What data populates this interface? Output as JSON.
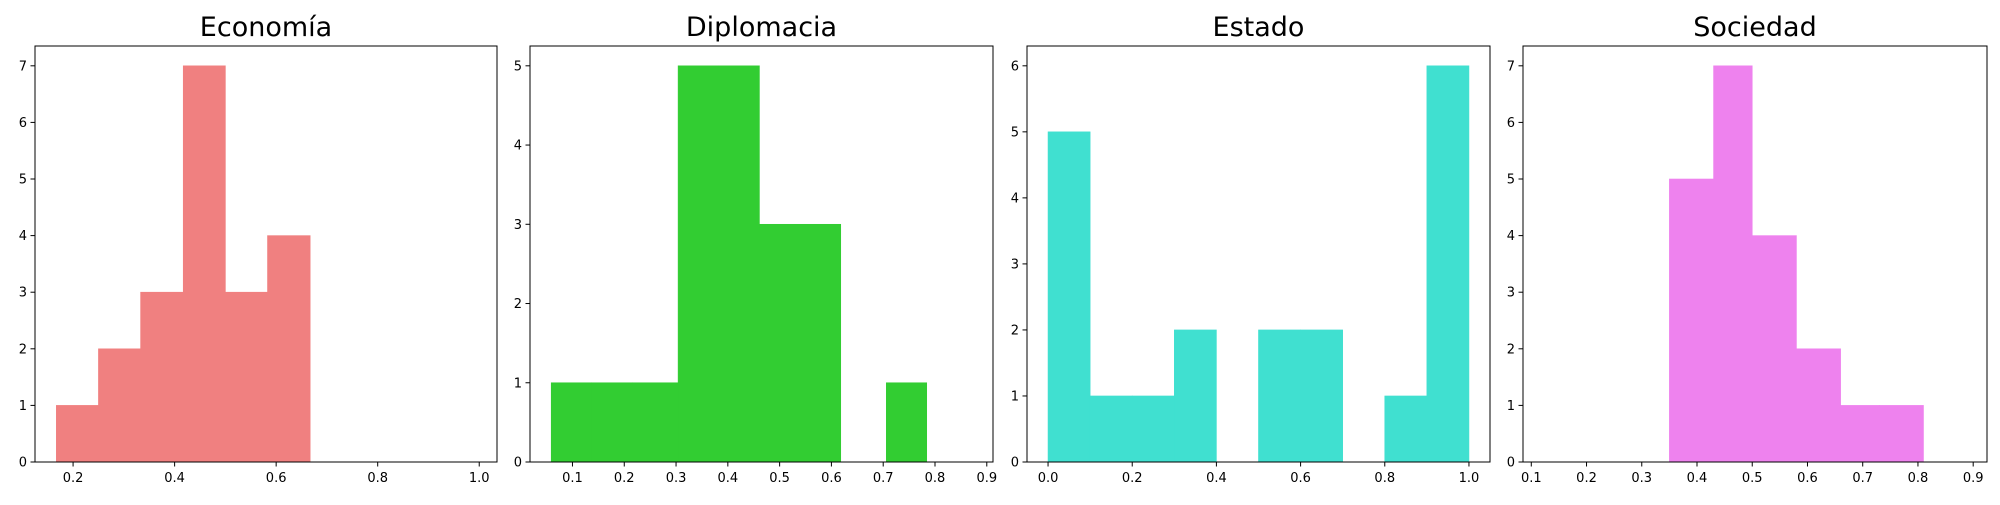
{
  "figure": {
    "background": "#ffffff"
  },
  "chart_data": [
    {
      "type": "bar",
      "title": "Economía",
      "xlabel": "",
      "ylabel": "",
      "color": "#f08080",
      "xlim": [
        0.125,
        1.035
      ],
      "ylim": [
        0,
        7.35
      ],
      "xticks": [
        0.2,
        0.4,
        0.6,
        0.8,
        1.0
      ],
      "xtick_labels": [
        "0.2",
        "0.4",
        "0.6",
        "0.8",
        "1.0"
      ],
      "yticks": [
        0,
        1,
        2,
        3,
        4,
        5,
        6,
        7
      ],
      "bins": [
        {
          "x0": 0.167,
          "x1": 0.25,
          "count": 1
        },
        {
          "x0": 0.25,
          "x1": 0.333,
          "count": 2
        },
        {
          "x0": 0.333,
          "x1": 0.417,
          "count": 3
        },
        {
          "x0": 0.417,
          "x1": 0.5,
          "count": 7
        },
        {
          "x0": 0.5,
          "x1": 0.583,
          "count": 3
        },
        {
          "x0": 0.583,
          "x1": 0.667,
          "count": 4
        }
      ]
    },
    {
      "type": "bar",
      "title": "Diplomacia",
      "xlabel": "",
      "ylabel": "",
      "color": "#32cd32",
      "xlim": [
        0.018,
        0.912
      ],
      "ylim": [
        0,
        5.25
      ],
      "xticks": [
        0.1,
        0.2,
        0.3,
        0.4,
        0.5,
        0.6,
        0.7,
        0.8,
        0.9
      ],
      "xtick_labels": [
        "0.1",
        "0.2",
        "0.3",
        "0.4",
        "0.5",
        "0.6",
        "0.7",
        "0.8",
        "0.9"
      ],
      "yticks": [
        0,
        1,
        2,
        3,
        4,
        5
      ],
      "bins": [
        {
          "x0": 0.059,
          "x1": 0.137,
          "count": 1
        },
        {
          "x0": 0.137,
          "x1": 0.216,
          "count": 1
        },
        {
          "x0": 0.216,
          "x1": 0.304,
          "count": 1
        },
        {
          "x0": 0.304,
          "x1": 0.382,
          "count": 5
        },
        {
          "x0": 0.382,
          "x1": 0.461,
          "count": 5
        },
        {
          "x0": 0.461,
          "x1": 0.539,
          "count": 3
        },
        {
          "x0": 0.539,
          "x1": 0.618,
          "count": 3
        },
        {
          "x0": 0.618,
          "x1": 0.706,
          "count": 0
        },
        {
          "x0": 0.706,
          "x1": 0.784,
          "count": 1
        }
      ]
    },
    {
      "type": "bar",
      "title": "Estado",
      "xlabel": "",
      "ylabel": "",
      "color": "#40e0d0",
      "xlim": [
        -0.05,
        1.05
      ],
      "ylim": [
        0,
        6.3
      ],
      "xticks": [
        0.0,
        0.2,
        0.4,
        0.6,
        0.8,
        1.0
      ],
      "xtick_labels": [
        "0.0",
        "0.2",
        "0.4",
        "0.6",
        "0.8",
        "1.0"
      ],
      "yticks": [
        0,
        1,
        2,
        3,
        4,
        5,
        6
      ],
      "bins": [
        {
          "x0": 0.0,
          "x1": 0.1,
          "count": 5
        },
        {
          "x0": 0.1,
          "x1": 0.2,
          "count": 1
        },
        {
          "x0": 0.2,
          "x1": 0.3,
          "count": 1
        },
        {
          "x0": 0.3,
          "x1": 0.4,
          "count": 2
        },
        {
          "x0": 0.4,
          "x1": 0.5,
          "count": 0
        },
        {
          "x0": 0.5,
          "x1": 0.6,
          "count": 2
        },
        {
          "x0": 0.6,
          "x1": 0.7,
          "count": 2
        },
        {
          "x0": 0.7,
          "x1": 0.8,
          "count": 0
        },
        {
          "x0": 0.8,
          "x1": 0.9,
          "count": 1
        },
        {
          "x0": 0.9,
          "x1": 1.0,
          "count": 6
        }
      ]
    },
    {
      "type": "bar",
      "title": "Sociedad",
      "xlabel": "",
      "ylabel": "",
      "color": "#ee82ee",
      "xlim": [
        0.085,
        0.925
      ],
      "ylim": [
        0,
        7.35
      ],
      "xticks": [
        0.1,
        0.2,
        0.3,
        0.4,
        0.5,
        0.6,
        0.7,
        0.8,
        0.9
      ],
      "xtick_labels": [
        "0.1",
        "0.2",
        "0.3",
        "0.4",
        "0.5",
        "0.6",
        "0.7",
        "0.8",
        "0.9"
      ],
      "yticks": [
        0,
        1,
        2,
        3,
        4,
        5,
        6,
        7
      ],
      "bins": [
        {
          "x0": 0.35,
          "x1": 0.43,
          "count": 5
        },
        {
          "x0": 0.43,
          "x1": 0.5,
          "count": 7
        },
        {
          "x0": 0.5,
          "x1": 0.58,
          "count": 4
        },
        {
          "x0": 0.58,
          "x1": 0.66,
          "count": 2
        },
        {
          "x0": 0.66,
          "x1": 0.73,
          "count": 1
        },
        {
          "x0": 0.73,
          "x1": 0.81,
          "count": 1
        }
      ]
    }
  ]
}
